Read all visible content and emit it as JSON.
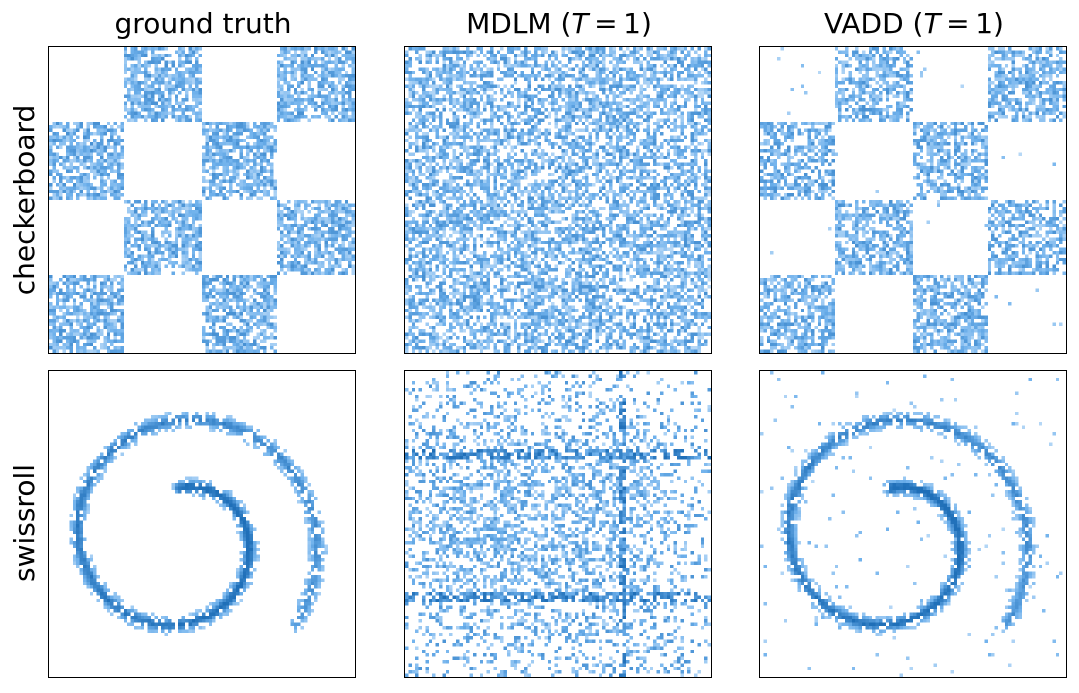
{
  "columns": [
    {
      "title": "ground truth"
    },
    {
      "title_prefix": "MDLM (",
      "title_var": "T",
      "title_suffix": " = 1)"
    },
    {
      "title_prefix": "VADD (",
      "title_var": "T",
      "title_suffix": " = 1)"
    }
  ],
  "rows": [
    {
      "label": "checkerboard"
    },
    {
      "label": "swissroll"
    }
  ],
  "chart_data": [
    {
      "type": "heatmap",
      "row": "checkerboard",
      "column": "ground truth",
      "pattern": "checkerboard",
      "grid_cells": 4,
      "bins": 90,
      "noise_fraction": 0.0,
      "mass_fraction": 0.72
    },
    {
      "type": "heatmap",
      "row": "checkerboard",
      "column": "MDLM (T = 1)",
      "pattern": "uniform",
      "bins": 90,
      "noise_fraction": 1.0,
      "mass_fraction": 0.62
    },
    {
      "type": "heatmap",
      "row": "checkerboard",
      "column": "VADD (T = 1)",
      "pattern": "checkerboard",
      "grid_cells": 4,
      "bins": 90,
      "noise_fraction": 0.01,
      "mass_fraction": 0.66
    },
    {
      "type": "heatmap",
      "row": "swissroll",
      "column": "ground truth",
      "pattern": "spiral",
      "bins": 90,
      "noise_fraction": 0.0
    },
    {
      "type": "heatmap",
      "row": "swissroll",
      "column": "MDLM (T = 1)",
      "pattern": "marginal-product",
      "bins": 90,
      "noise_fraction": 0.55
    },
    {
      "type": "heatmap",
      "row": "swissroll",
      "column": "VADD (T = 1)",
      "pattern": "spiral",
      "bins": 90,
      "noise_fraction": 0.02
    }
  ],
  "colors": {
    "cmap_light": "#d6e9fb",
    "cmap_mid": "#6fb1ec",
    "cmap_dark": "#1f6fb8",
    "background": "#ffffff",
    "frame": "#000000"
  }
}
